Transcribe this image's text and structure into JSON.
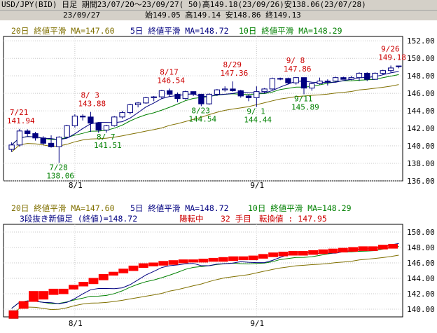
{
  "header": {
    "line1": "USD/JPY(BID) 日足 期間23/07/20～23/09/27( 50)高149.18(23/09/26)安138.06(23/07/28)",
    "date": "23/09/27",
    "ohlc": "始149.05 高149.14 安148.86 終149.13"
  },
  "legend": {
    "ma20": "20日 終値平滑 MA=147.60",
    "ma5": "5日 終値平滑 MA=148.72",
    "ma10": "10日 終値平滑 MA=148.29"
  },
  "kagi_info": {
    "title": "3段抜き新値足 (終値)=148.72",
    "state": "陽転中",
    "count": "32 手目",
    "reversal": "転換値 : 147.95"
  },
  "colors": {
    "ma20": "#807000",
    "ma5": "#000080",
    "ma10": "#008000",
    "up_label": "#cc0000",
    "down_label": "#008000",
    "bull_bar": "#ff0000",
    "bear_bar": "#ffffff"
  },
  "chart_data": [
    {
      "type": "candlestick",
      "x_tick_labels": [
        "8/1",
        "9/1"
      ],
      "y_ticks": [
        "136.00",
        "138.00",
        "140.00",
        "142.00",
        "144.00",
        "146.00",
        "148.00",
        "150.00",
        "152.00"
      ],
      "ylim": [
        136,
        152.5
      ],
      "grid": true,
      "dates": [
        "7/20",
        "7/21",
        "7/24",
        "7/25",
        "7/26",
        "7/27",
        "7/28",
        "7/31",
        "8/1",
        "8/2",
        "8/3",
        "8/4",
        "8/7",
        "8/8",
        "8/9",
        "8/10",
        "8/11",
        "8/14",
        "8/15",
        "8/16",
        "8/17",
        "8/18",
        "8/21",
        "8/22",
        "8/23",
        "8/24",
        "8/25",
        "8/28",
        "8/29",
        "8/30",
        "8/31",
        "9/1",
        "9/4",
        "9/5",
        "9/6",
        "9/7",
        "9/8",
        "9/11",
        "9/12",
        "9/13",
        "9/14",
        "9/15",
        "9/18",
        "9/19",
        "9/20",
        "9/21",
        "9/22",
        "9/25",
        "9/26",
        "9/27"
      ],
      "ohlc": [
        [
          139.6,
          140.4,
          139.3,
          140.1
        ],
        [
          140.1,
          141.94,
          139.9,
          141.7
        ],
        [
          141.7,
          141.9,
          141.1,
          141.4
        ],
        [
          141.4,
          141.6,
          140.6,
          140.9
        ],
        [
          140.9,
          141.1,
          140.1,
          140.3
        ],
        [
          140.3,
          141.2,
          139.8,
          139.9
        ],
        [
          139.9,
          141.1,
          138.06,
          141.0
        ],
        [
          141.0,
          142.4,
          140.9,
          142.3
        ],
        [
          142.3,
          143.6,
          142.1,
          143.4
        ],
        [
          143.4,
          143.6,
          142.9,
          143.3
        ],
        [
          143.3,
          143.88,
          141.6,
          142.6
        ],
        [
          142.6,
          142.7,
          141.5,
          141.8
        ],
        [
          141.8,
          142.4,
          141.51,
          142.3
        ],
        [
          142.3,
          143.4,
          142.2,
          143.3
        ],
        [
          143.3,
          144.0,
          143.1,
          143.8
        ],
        [
          143.8,
          144.8,
          143.6,
          144.7
        ],
        [
          144.7,
          145.0,
          144.4,
          144.9
        ],
        [
          144.9,
          145.6,
          144.8,
          145.5
        ],
        [
          145.5,
          145.7,
          145.1,
          145.6
        ],
        [
          145.6,
          146.4,
          145.4,
          146.3
        ],
        [
          146.3,
          146.54,
          145.6,
          145.9
        ],
        [
          145.9,
          146.1,
          145.0,
          145.4
        ],
        [
          145.4,
          146.3,
          145.3,
          146.2
        ],
        [
          146.2,
          146.2,
          145.7,
          145.9
        ],
        [
          145.9,
          145.9,
          144.54,
          144.8
        ],
        [
          144.8,
          146.0,
          144.7,
          145.9
        ],
        [
          145.9,
          146.5,
          145.7,
          146.4
        ],
        [
          146.4,
          146.8,
          146.2,
          146.5
        ],
        [
          146.5,
          147.36,
          146.2,
          146.3
        ],
        [
          146.3,
          146.4,
          145.5,
          145.7
        ],
        [
          145.7,
          145.9,
          145.1,
          145.5
        ],
        [
          145.5,
          146.8,
          144.44,
          146.2
        ],
        [
          146.2,
          146.6,
          146.0,
          146.5
        ],
        [
          146.5,
          147.8,
          146.4,
          147.7
        ],
        [
          147.7,
          147.8,
          147.5,
          147.7
        ],
        [
          147.7,
          147.8,
          147.0,
          147.2
        ],
        [
          147.2,
          147.86,
          147.0,
          147.8
        ],
        [
          147.8,
          147.8,
          145.89,
          146.6
        ],
        [
          146.6,
          147.2,
          146.3,
          147.1
        ],
        [
          147.1,
          147.8,
          147.0,
          147.4
        ],
        [
          147.4,
          147.6,
          146.9,
          147.4
        ],
        [
          147.4,
          147.9,
          147.3,
          147.8
        ],
        [
          147.8,
          147.9,
          147.6,
          147.6
        ],
        [
          147.6,
          148.0,
          147.5,
          147.8
        ],
        [
          147.8,
          148.4,
          147.4,
          148.3
        ],
        [
          148.3,
          148.4,
          147.4,
          147.6
        ],
        [
          147.6,
          148.4,
          147.6,
          148.3
        ],
        [
          148.3,
          148.7,
          148.1,
          148.6
        ],
        [
          148.6,
          149.18,
          148.4,
          148.9
        ],
        [
          149.05,
          149.14,
          148.86,
          149.13
        ]
      ],
      "annotations": [
        {
          "date": "7/21",
          "text": "7/21",
          "value": "141.94",
          "kind": "high"
        },
        {
          "date": "7/28",
          "text": "7/28",
          "value": "138.06",
          "kind": "low"
        },
        {
          "date": "8/3",
          "text": "8/ 3",
          "value": "143.88",
          "kind": "high"
        },
        {
          "date": "8/7",
          "text": "8/ 7",
          "value": "141.51",
          "kind": "low"
        },
        {
          "date": "8/17",
          "text": "8/17",
          "value": "146.54",
          "kind": "high"
        },
        {
          "date": "8/23",
          "text": "8/23",
          "value": "144.54",
          "kind": "low"
        },
        {
          "date": "8/29",
          "text": "8/29",
          "value": "147.36",
          "kind": "high"
        },
        {
          "date": "9/1",
          "text": "9/ 1",
          "value": "144.44",
          "kind": "low"
        },
        {
          "date": "9/8",
          "text": "9/ 8",
          "value": "147.86",
          "kind": "high"
        },
        {
          "date": "9/11",
          "text": "9/11",
          "value": "145.89",
          "kind": "low"
        },
        {
          "date": "9/26",
          "text": "9/26",
          "value": "149.18",
          "kind": "high"
        }
      ]
    },
    {
      "type": "new-price-bars",
      "x_tick_labels": [
        "8/1",
        "9/1"
      ],
      "y_ticks": [
        "140.00",
        "142.00",
        "144.00",
        "146.00",
        "148.00",
        "150.00"
      ],
      "ylim": [
        139,
        151
      ],
      "grid": true,
      "bricks": [
        [
          138.8,
          139.8,
          "down"
        ],
        [
          140.1,
          141.0,
          "up"
        ],
        [
          141.0,
          142.3,
          "up"
        ],
        [
          141.3,
          142.3,
          "up"
        ],
        [
          141.9,
          142.6,
          "up"
        ],
        [
          142.0,
          142.6,
          "up"
        ],
        [
          142.6,
          143.1,
          "up"
        ],
        [
          143.0,
          143.5,
          "up"
        ],
        [
          143.3,
          144.0,
          "up"
        ],
        [
          143.8,
          144.5,
          "up"
        ],
        [
          144.4,
          144.8,
          "up"
        ],
        [
          144.7,
          145.2,
          "up"
        ],
        [
          145.0,
          145.6,
          "up"
        ],
        [
          145.4,
          145.9,
          "up"
        ],
        [
          145.6,
          146.0,
          "up"
        ],
        [
          145.7,
          146.2,
          "up"
        ],
        [
          145.8,
          146.3,
          "up"
        ],
        [
          146.0,
          146.4,
          "up"
        ],
        [
          146.1,
          146.4,
          "up"
        ],
        [
          146.1,
          146.5,
          "up"
        ],
        [
          146.2,
          146.6,
          "up"
        ],
        [
          146.2,
          146.7,
          "up"
        ],
        [
          146.3,
          146.8,
          "up"
        ],
        [
          146.4,
          146.8,
          "up"
        ],
        [
          146.4,
          146.9,
          "up"
        ],
        [
          146.6,
          147.1,
          "up"
        ],
        [
          146.8,
          147.3,
          "up"
        ],
        [
          146.9,
          147.4,
          "up"
        ],
        [
          147.0,
          147.5,
          "up"
        ],
        [
          147.0,
          147.5,
          "up"
        ],
        [
          147.1,
          147.6,
          "up"
        ],
        [
          147.2,
          147.7,
          "up"
        ],
        [
          147.3,
          147.8,
          "up"
        ],
        [
          147.4,
          147.9,
          "up"
        ],
        [
          147.5,
          148.0,
          "up"
        ],
        [
          147.6,
          148.1,
          "up"
        ],
        [
          147.6,
          148.1,
          "up"
        ],
        [
          147.8,
          148.3,
          "up"
        ],
        [
          147.9,
          148.4,
          "up"
        ]
      ]
    }
  ]
}
